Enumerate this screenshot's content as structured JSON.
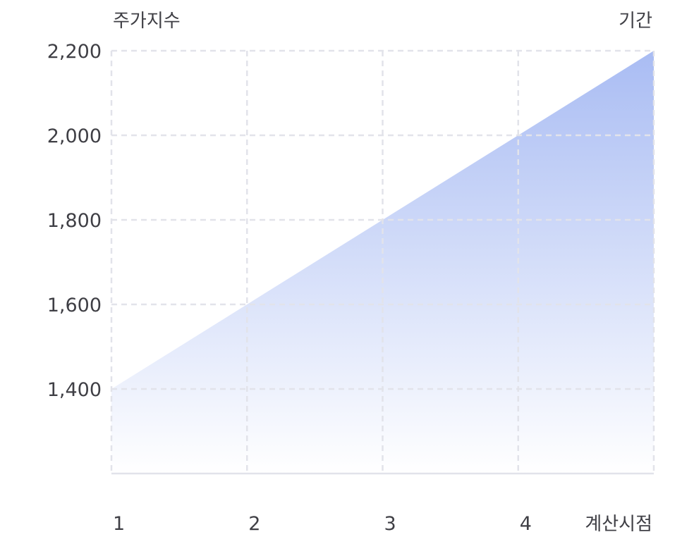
{
  "chart_data": {
    "type": "area",
    "ylabel": "주가지수",
    "xlabel": "기간",
    "x_axis_end_label": "계산시점",
    "x": [
      1,
      2,
      3,
      4,
      5
    ],
    "x_tick_labels": [
      "1",
      "2",
      "3",
      "4"
    ],
    "values": [
      1400,
      1600,
      1800,
      2000,
      2200
    ],
    "y_ticks": [
      1400,
      1600,
      1800,
      2000,
      2200
    ],
    "y_tick_labels": [
      "1,400",
      "1,600",
      "1,800",
      "2,000",
      "2,200"
    ],
    "ylim": [
      1200,
      2200
    ],
    "xlim": [
      1,
      5
    ],
    "grid": true,
    "colors": {
      "fill_top": "#a9bcf3",
      "fill_bottom": "#ffffff",
      "grid": "#e2e3ea",
      "axis": "#e2e3ea"
    }
  }
}
